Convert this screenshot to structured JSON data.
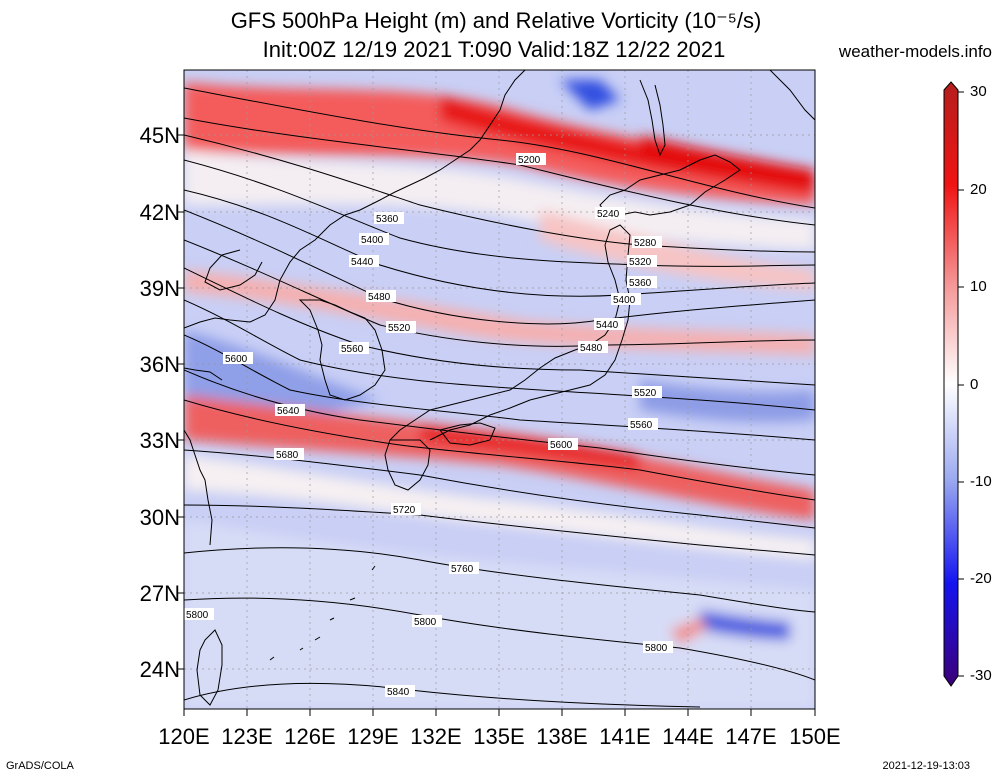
{
  "title": {
    "line1": "GFS 500hPa Height (m) and Relative Vorticity (10⁻⁵/s)",
    "line2": "Init:00Z 12/19 2021 T:090 Valid:18Z 12/22 2021"
  },
  "site": "weather-models.info",
  "footer": {
    "left": "GrADS/COLA",
    "right": "2021-12-19-13:03"
  },
  "map": {
    "region": {
      "lon_min": 120,
      "lon_max": 150,
      "lat_min": 22.5,
      "lat_max": 47.5
    },
    "lat_ticks": [
      {
        "lat": 45,
        "label": "45N"
      },
      {
        "lat": 42,
        "label": "42N"
      },
      {
        "lat": 39,
        "label": "39N"
      },
      {
        "lat": 36,
        "label": "36N"
      },
      {
        "lat": 33,
        "label": "33N"
      },
      {
        "lat": 30,
        "label": "30N"
      },
      {
        "lat": 27,
        "label": "27N"
      },
      {
        "lat": 24,
        "label": "24N"
      }
    ],
    "lon_ticks": [
      {
        "lon": 120,
        "label": "120E"
      },
      {
        "lon": 123,
        "label": "123E"
      },
      {
        "lon": 126,
        "label": "126E"
      },
      {
        "lon": 129,
        "label": "129E"
      },
      {
        "lon": 132,
        "label": "132E"
      },
      {
        "lon": 135,
        "label": "135E"
      },
      {
        "lon": 138,
        "label": "138E"
      },
      {
        "lon": 141,
        "label": "141E"
      },
      {
        "lon": 144,
        "label": "144E"
      },
      {
        "lon": 147,
        "label": "147E"
      },
      {
        "lon": 150,
        "label": "150E"
      }
    ],
    "contour_labels": [
      "5200",
      "5240",
      "5280",
      "5320",
      "5360",
      "5360",
      "5400",
      "5400",
      "5440",
      "5440",
      "5480",
      "5480",
      "5520",
      "5520",
      "5560",
      "5560",
      "5600",
      "5600",
      "5640",
      "5680",
      "5720",
      "5760",
      "5800",
      "5800",
      "5800",
      "5840"
    ],
    "colorbar": {
      "labels": [
        "30",
        "20",
        "10",
        "0",
        "-10",
        "-20",
        "-30"
      ],
      "values": [
        30,
        20,
        10,
        0,
        -10,
        -20,
        -30
      ],
      "colors": [
        "#b41e1e",
        "#f01414",
        "#f59a9a",
        "#ffffff",
        "#9aa8f0",
        "#1414f0",
        "#3c0078"
      ]
    }
  }
}
